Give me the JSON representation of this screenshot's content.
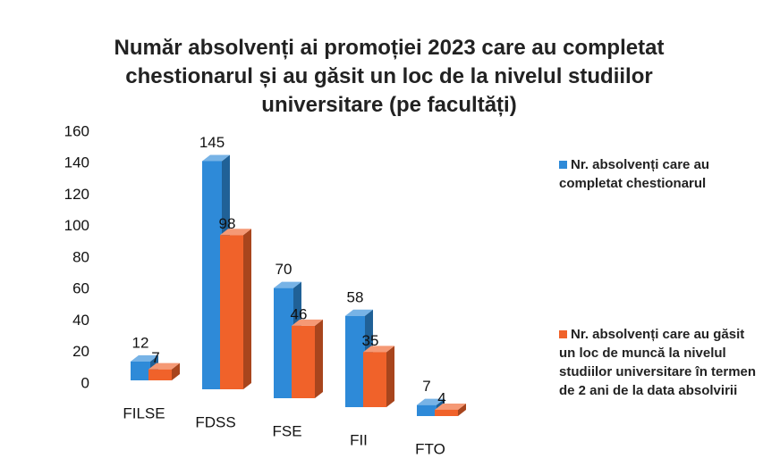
{
  "chart_data": {
    "type": "bar3d",
    "title": "Număr absolvenți ai promoției 2023 care au completat chestionarul și au găsit un loc de la nivelul studiilor universitare (pe facultăți)",
    "categories": [
      "FILSE",
      "FDSS",
      "FSE",
      "FII",
      "FTO"
    ],
    "series": [
      {
        "name": "Nr. absolvenți care au completat chestionarul",
        "color": "#2e8ad8",
        "values": [
          12,
          145,
          70,
          58,
          7
        ]
      },
      {
        "name": "Nr. absolvenți care au găsit un loc de muncă la nivelul studiilor universitare în termen de 2 ani de la data absolvirii",
        "color": "#f0622a",
        "values": [
          7,
          98,
          46,
          35,
          4
        ]
      }
    ],
    "ylim": [
      0,
      160
    ],
    "yticks": [
      0,
      20,
      40,
      60,
      80,
      100,
      120,
      140,
      160
    ]
  }
}
